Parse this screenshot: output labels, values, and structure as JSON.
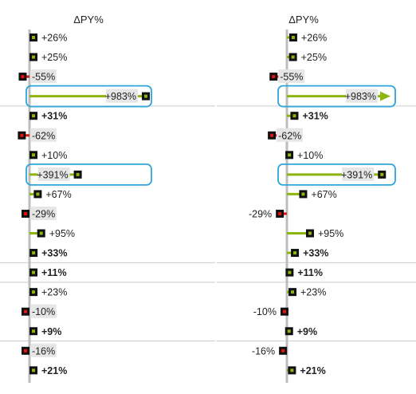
{
  "chart_data": [
    {
      "type": "bar",
      "orientation": "horizontal",
      "title": "ΔPY%",
      "variant": "marker",
      "values": [
        26,
        25,
        -55,
        983,
        31,
        -62,
        10,
        391,
        67,
        -29,
        95,
        33,
        11,
        23,
        -10,
        9,
        -16,
        21
      ],
      "labels": [
        "+26%",
        "+25%",
        "-55%",
        "+983%",
        "+31%",
        "-62%",
        "+10%",
        "+391%",
        "+67%",
        "-29%",
        "+95%",
        "+33%",
        "+11%",
        "+23%",
        "-10%",
        "+9%",
        "-16%",
        "+21%"
      ],
      "bold": [
        false,
        false,
        false,
        false,
        true,
        false,
        false,
        false,
        false,
        false,
        false,
        true,
        true,
        false,
        false,
        true,
        false,
        true
      ],
      "highlighted": [
        3,
        7
      ],
      "positive_color": "#8db50f",
      "negative_color": "#e8120c",
      "marker_color": "#111111"
    },
    {
      "type": "bar",
      "orientation": "horizontal",
      "title": "ΔPY%",
      "variant": "scaled-pin",
      "values": [
        26,
        25,
        -55,
        983,
        31,
        -62,
        10,
        391,
        67,
        -29,
        95,
        33,
        11,
        23,
        -10,
        9,
        -16,
        21
      ],
      "labels": [
        "+26%",
        "+25%",
        "-55%",
        "+983%",
        "+31%",
        "-62%",
        "+10%",
        "+391%",
        "+67%",
        "-29%",
        "+95%",
        "+33%",
        "+11%",
        "+23%",
        "-10%",
        "+9%",
        "-16%",
        "+21%"
      ],
      "bold": [
        false,
        false,
        false,
        false,
        true,
        false,
        false,
        false,
        false,
        false,
        false,
        true,
        true,
        false,
        false,
        true,
        false,
        true
      ],
      "highlighted": [
        3,
        7
      ],
      "positive_color": "#8db50f",
      "negative_color": "#e8120c",
      "marker_color": "#111111"
    }
  ],
  "colors": {
    "axis": "#bdbdbd",
    "separator": "#cccccc",
    "highlight_box": "#2ea6dc",
    "label_background": "#e6e6e6"
  }
}
